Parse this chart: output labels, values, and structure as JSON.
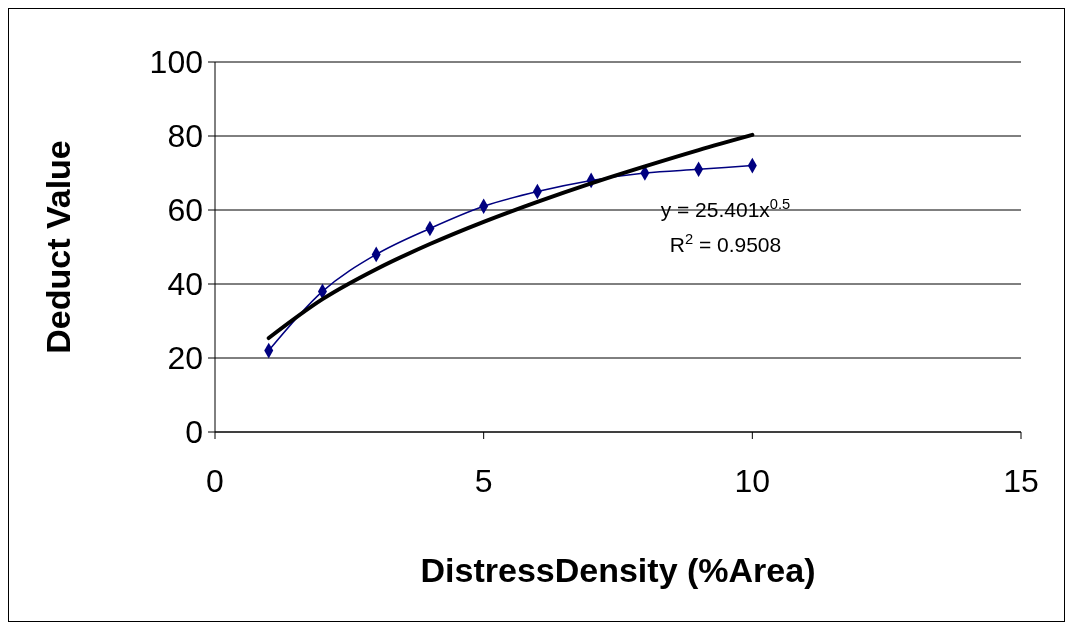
{
  "chart_data": {
    "type": "line",
    "xlabel": "DistressDensity (%Area)",
    "ylabel": "Deduct Value",
    "xlim": [
      0,
      15
    ],
    "xticks": [
      0,
      5,
      10,
      15
    ],
    "ylim": [
      0,
      100
    ],
    "yticks": [
      0,
      20,
      40,
      60,
      80,
      100
    ],
    "grid": "y",
    "series": [
      {
        "color": "#000080",
        "marker": "diamond",
        "x": [
          1,
          2,
          3,
          4,
          5,
          6,
          7,
          8,
          9,
          10
        ],
        "values": [
          22,
          38,
          48,
          55,
          61,
          65,
          68,
          70,
          71,
          72
        ]
      },
      {
        "color": "#000000",
        "marker": "none",
        "x": [
          1,
          2,
          3,
          4,
          5,
          6,
          7,
          8,
          9,
          10
        ],
        "values": [
          25.4,
          35.9,
          44.0,
          50.8,
          56.8,
          62.2,
          67.2,
          71.8,
          76.2,
          80.3
        ]
      }
    ],
    "annotations": [
      "y = 25.401x$^{0.5}$",
      "R$^{2}$ = 0.9508"
    ]
  }
}
